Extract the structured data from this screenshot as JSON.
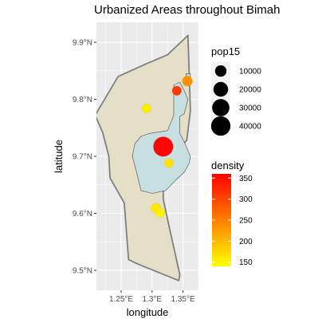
{
  "chart_data": {
    "type": "map",
    "title": "Urbanized Areas throughout Bimah",
    "xlabel": "longitude",
    "ylabel": "latitude",
    "xlim": [
      1.21,
      1.375
    ],
    "ylim": [
      9.465,
      9.935
    ],
    "x_ticks": [
      {
        "value": 1.25,
        "label": "1.25°E"
      },
      {
        "value": 1.3,
        "label": "1.3°E"
      },
      {
        "value": 1.35,
        "label": "1.35°E"
      }
    ],
    "y_ticks": [
      {
        "value": 9.5,
        "label": "9.5°N"
      },
      {
        "value": 9.6,
        "label": "9.6°N"
      },
      {
        "value": 9.7,
        "label": "9.7°N"
      },
      {
        "value": 9.8,
        "label": "9.8°N"
      },
      {
        "value": 9.9,
        "label": "9.9°N"
      }
    ],
    "grid": true,
    "colors": {
      "panel_background": "#ebebeb",
      "grid": "#ffffff",
      "region_fill": "#e6dfc7",
      "region_stroke": "#808080",
      "water_fill": "#c7dfe1",
      "water_stroke": "#4a4a4a",
      "density_low": "#ffff00",
      "density_high": "#ff0000"
    },
    "region_outline": [
      [
        1.208,
        9.772
      ],
      [
        1.245,
        9.84
      ],
      [
        1.29,
        9.862
      ],
      [
        1.325,
        9.878
      ],
      [
        1.358,
        9.912
      ],
      [
        1.362,
        9.78
      ],
      [
        1.356,
        9.728
      ],
      [
        1.344,
        9.715
      ],
      [
        1.325,
        9.69
      ],
      [
        1.318,
        9.66
      ],
      [
        1.318,
        9.625
      ],
      [
        1.328,
        9.575
      ],
      [
        1.345,
        9.492
      ],
      [
        1.343,
        9.482
      ],
      [
        1.275,
        9.512
      ],
      [
        1.262,
        9.519
      ],
      [
        1.255,
        9.618
      ],
      [
        1.232,
        9.662
      ],
      [
        1.23,
        9.7
      ],
      [
        1.22,
        9.742
      ],
      [
        1.208,
        9.772
      ]
    ],
    "water_bodies": [
      [
        [
          1.335,
          9.825
        ],
        [
          1.335,
          9.772
        ],
        [
          1.325,
          9.745
        ],
        [
          1.295,
          9.74
        ],
        [
          1.282,
          9.735
        ],
        [
          1.272,
          9.722
        ],
        [
          1.268,
          9.7
        ],
        [
          1.275,
          9.672
        ],
        [
          1.282,
          9.64
        ],
        [
          1.3,
          9.635
        ],
        [
          1.322,
          9.64
        ],
        [
          1.34,
          9.66
        ],
        [
          1.352,
          9.672
        ],
        [
          1.36,
          9.688
        ],
        [
          1.362,
          9.7
        ],
        [
          1.352,
          9.725
        ],
        [
          1.345,
          9.74
        ],
        [
          1.345,
          9.77
        ],
        [
          1.352,
          9.775
        ],
        [
          1.358,
          9.8
        ],
        [
          1.352,
          9.815
        ],
        [
          1.345,
          9.83
        ],
        [
          1.335,
          9.825
        ]
      ],
      [
        [
          1.355,
          9.845
        ],
        [
          1.362,
          9.845
        ],
        [
          1.362,
          9.828
        ],
        [
          1.355,
          9.828
        ],
        [
          1.355,
          9.845
        ]
      ]
    ],
    "points": [
      {
        "lon": 1.318,
        "lat": 9.717,
        "pop15": 42000,
        "density": 355
      },
      {
        "lon": 1.357,
        "lat": 9.832,
        "pop15": 7000,
        "density": 235
      },
      {
        "lon": 1.34,
        "lat": 9.815,
        "pop15": 5500,
        "density": 310
      },
      {
        "lon": 1.291,
        "lat": 9.784,
        "pop15": 5000,
        "density": 155
      },
      {
        "lon": 1.327,
        "lat": 9.688,
        "pop15": 5000,
        "density": 165
      },
      {
        "lon": 1.306,
        "lat": 9.609,
        "pop15": 6000,
        "density": 160
      },
      {
        "lon": 1.313,
        "lat": 9.601,
        "pop15": 5500,
        "density": 150
      }
    ],
    "legend_size": {
      "title": "pop15",
      "items": [
        {
          "value": 10000,
          "label": "10000"
        },
        {
          "value": 20000,
          "label": "20000"
        },
        {
          "value": 30000,
          "label": "30000"
        },
        {
          "value": 40000,
          "label": "40000"
        }
      ]
    },
    "legend_color": {
      "title": "density",
      "range": [
        140,
        360
      ],
      "ticks": [
        {
          "value": 150,
          "label": "150"
        },
        {
          "value": 200,
          "label": "200"
        },
        {
          "value": 250,
          "label": "250"
        },
        {
          "value": 300,
          "label": "300"
        },
        {
          "value": 350,
          "label": "350"
        }
      ]
    }
  }
}
